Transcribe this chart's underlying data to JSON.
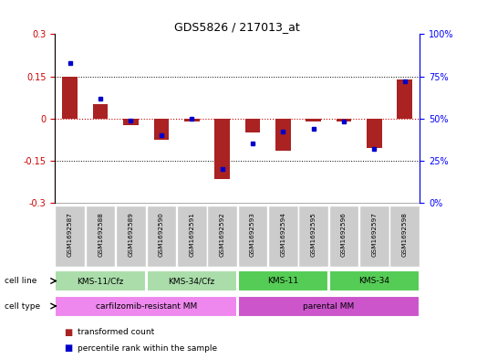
{
  "title": "GDS5826 / 217013_at",
  "samples": [
    "GSM1692587",
    "GSM1692588",
    "GSM1692589",
    "GSM1692590",
    "GSM1692591",
    "GSM1692592",
    "GSM1692593",
    "GSM1692594",
    "GSM1692595",
    "GSM1692596",
    "GSM1692597",
    "GSM1692598"
  ],
  "transformed_count": [
    0.15,
    0.05,
    -0.025,
    -0.075,
    -0.01,
    -0.215,
    -0.05,
    -0.115,
    -0.01,
    -0.01,
    -0.105,
    0.14
  ],
  "percentile_rank": [
    83,
    62,
    49,
    40,
    50,
    20,
    35,
    42,
    44,
    48,
    32,
    72
  ],
  "ylim_left": [
    -0.3,
    0.3
  ],
  "ylim_right": [
    0,
    100
  ],
  "yticks_left": [
    -0.3,
    -0.15,
    0,
    0.15,
    0.3
  ],
  "yticks_right": [
    0,
    25,
    50,
    75,
    100
  ],
  "bar_color": "#aa2222",
  "dot_color": "#0000cc",
  "cell_line_groups": [
    {
      "label": "KMS-11/Cfz",
      "start": 0,
      "end": 2,
      "color": "#aaddaa"
    },
    {
      "label": "KMS-34/Cfz",
      "start": 3,
      "end": 5,
      "color": "#aaddaa"
    },
    {
      "label": "KMS-11",
      "start": 6,
      "end": 8,
      "color": "#55cc55"
    },
    {
      "label": "KMS-34",
      "start": 9,
      "end": 11,
      "color": "#55cc55"
    }
  ],
  "cell_type_groups": [
    {
      "label": "carfilzomib-resistant MM",
      "start": 0,
      "end": 5,
      "color": "#ee88ee"
    },
    {
      "label": "parental MM",
      "start": 6,
      "end": 11,
      "color": "#cc55cc"
    }
  ],
  "sample_box_color": "#cccccc",
  "bg_color": "#ffffff"
}
